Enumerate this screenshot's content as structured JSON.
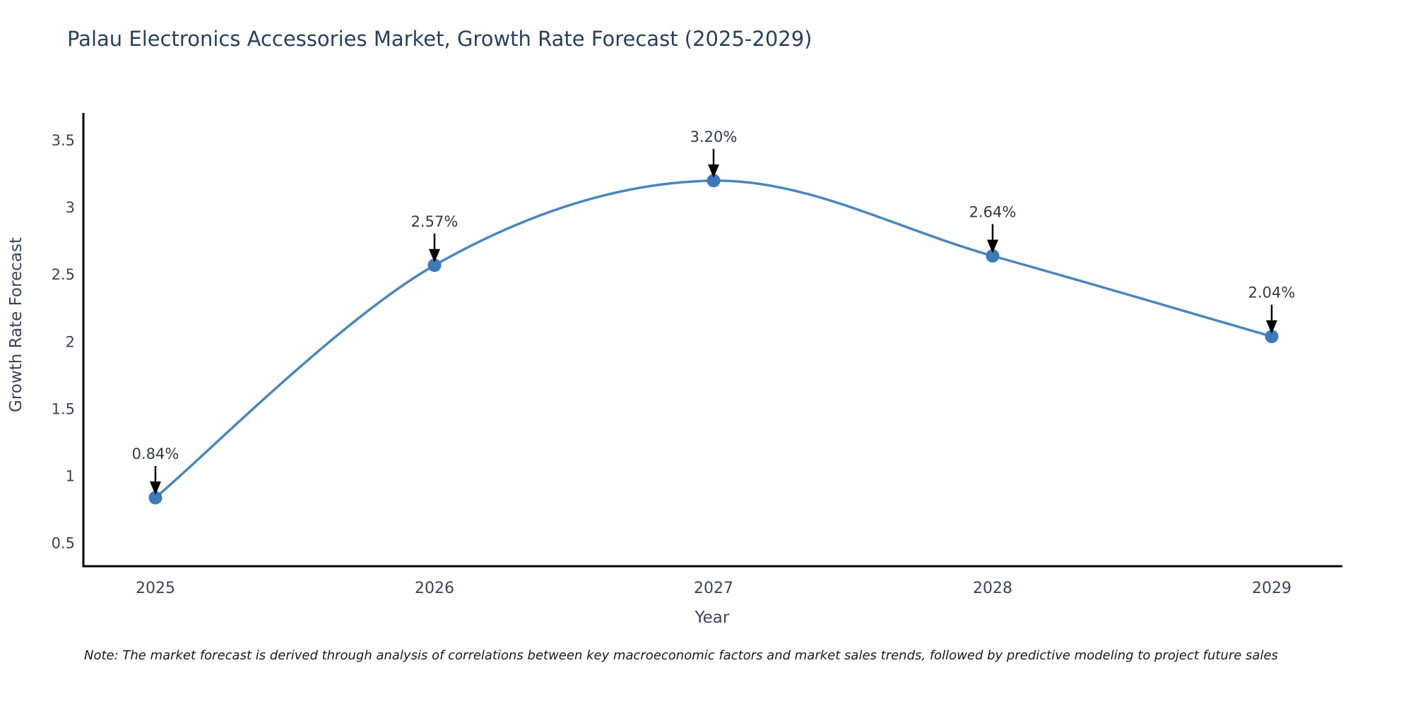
{
  "title": {
    "text": "Palau Electronics Accessories Market, Growth Rate Forecast (2025-2029)"
  },
  "note": {
    "text": "Note: The market forecast is derived through analysis of correlations between key macroeconomic factors and market sales trends, followed by predictive modeling to project future sales"
  },
  "chart_data": {
    "type": "line",
    "title": "Palau Electronics Accessories Market, Growth Rate Forecast (2025-2029)",
    "xlabel": "Year",
    "ylabel": "Growth Rate Forecast",
    "x": [
      2025,
      2026,
      2027,
      2028,
      2029
    ],
    "x_tick_labels": [
      "2025",
      "2026",
      "2027",
      "2028",
      "2029"
    ],
    "series": [
      {
        "name": "Growth Rate Forecast",
        "values": [
          0.84,
          2.57,
          3.2,
          2.64,
          2.04
        ]
      }
    ],
    "point_annotations": [
      "0.84%",
      "2.57%",
      "3.20%",
      "2.64%",
      "2.04%"
    ],
    "y_ticks": [
      0.5,
      1,
      1.5,
      2,
      2.5,
      3,
      3.5
    ],
    "y_tick_labels": [
      "0.5",
      "1",
      "1.5",
      "2",
      "2.5",
      "3",
      "3.5"
    ],
    "ylim": [
      0.32,
      3.55
    ],
    "grid": false,
    "legend_position": "none",
    "line_shape": "spline",
    "annotation_style": "value label with down arrow to marker",
    "colors": {
      "line": "#4a86bd",
      "marker": "#3c7ab8",
      "annotation_arrow": "#000000",
      "annotation_text": "#333a45",
      "axis_line": "#000000",
      "tick_text": "#3a4458",
      "axis_title_text": "#3a4458",
      "title_text": "#2a3f5f",
      "background": "#ffffff"
    }
  }
}
